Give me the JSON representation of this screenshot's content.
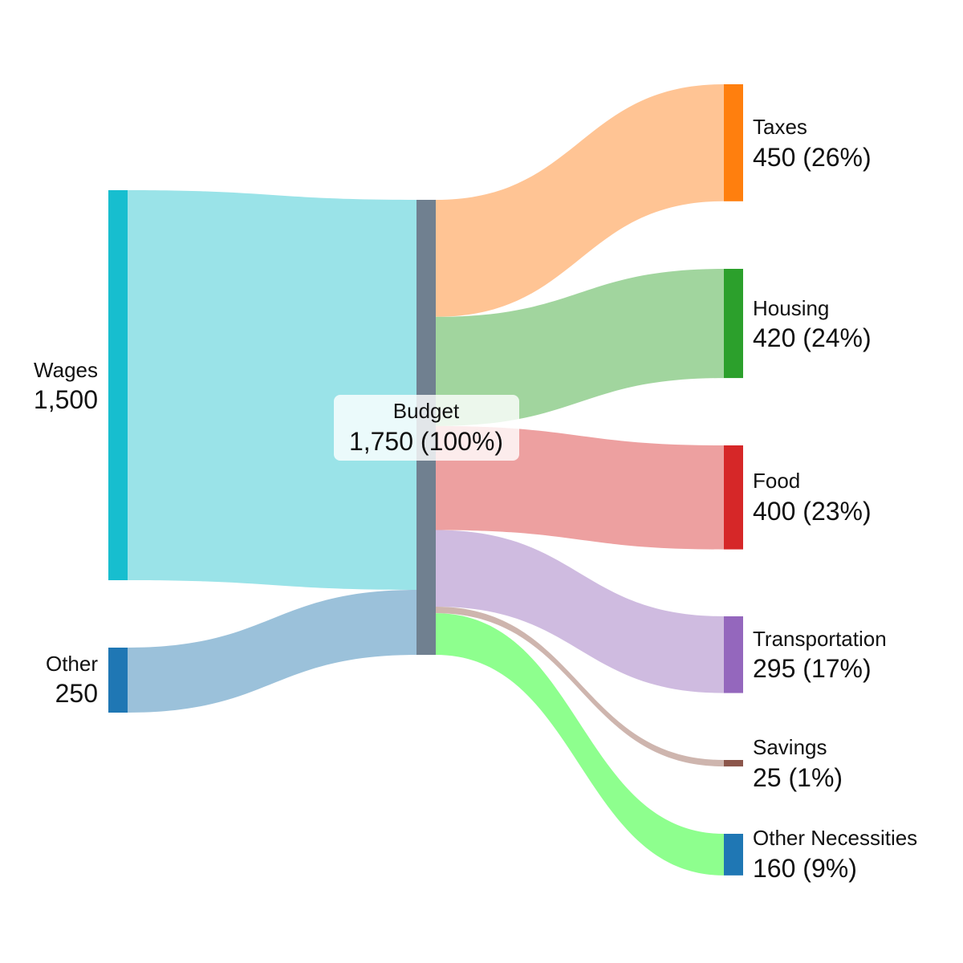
{
  "chart_data": {
    "type": "sankey",
    "nodes": [
      {
        "id": "wages",
        "name": "Wages",
        "value_label": "1,500",
        "value": 1500,
        "color": "#17becf"
      },
      {
        "id": "other",
        "name": "Other",
        "value_label": "250",
        "value": 250,
        "color": "#1f77b4"
      },
      {
        "id": "budget",
        "name": "Budget",
        "value_label": "1,750 (100%)",
        "value": 1750,
        "color": "#708090"
      },
      {
        "id": "taxes",
        "name": "Taxes",
        "value_label": "450 (26%)",
        "value": 450,
        "color": "#ff7f0e"
      },
      {
        "id": "housing",
        "name": "Housing",
        "value_label": "420 (24%)",
        "value": 420,
        "color": "#2ca02c"
      },
      {
        "id": "food",
        "name": "Food",
        "value_label": "400 (23%)",
        "value": 400,
        "color": "#d62728"
      },
      {
        "id": "transportation",
        "name": "Transportation",
        "value_label": "295 (17%)",
        "value": 295,
        "color": "#9467bd"
      },
      {
        "id": "savings",
        "name": "Savings",
        "value_label": "25 (1%)",
        "value": 25,
        "color": "#8c564b"
      },
      {
        "id": "other_necessities",
        "name": "Other Necessities",
        "value_label": "160 (9%)",
        "value": 160,
        "color": "#1f77b4"
      }
    ],
    "links": [
      {
        "source": "wages",
        "target": "budget",
        "value": 1500,
        "color": "#9ae3e8"
      },
      {
        "source": "other",
        "target": "budget",
        "value": 250,
        "color": "#9bc1da"
      },
      {
        "source": "budget",
        "target": "taxes",
        "value": 450,
        "color": "#ffc494"
      },
      {
        "source": "budget",
        "target": "housing",
        "value": 420,
        "color": "#a1d59e"
      },
      {
        "source": "budget",
        "target": "food",
        "value": 400,
        "color": "#eda0a0"
      },
      {
        "source": "budget",
        "target": "transportation",
        "value": 295,
        "color": "#cfbbe0"
      },
      {
        "source": "budget",
        "target": "savings",
        "value": 25,
        "color": "#ceb5ae"
      },
      {
        "source": "budget",
        "target": "other_necessities",
        "value": 160,
        "color": "#8eff8e"
      }
    ]
  }
}
